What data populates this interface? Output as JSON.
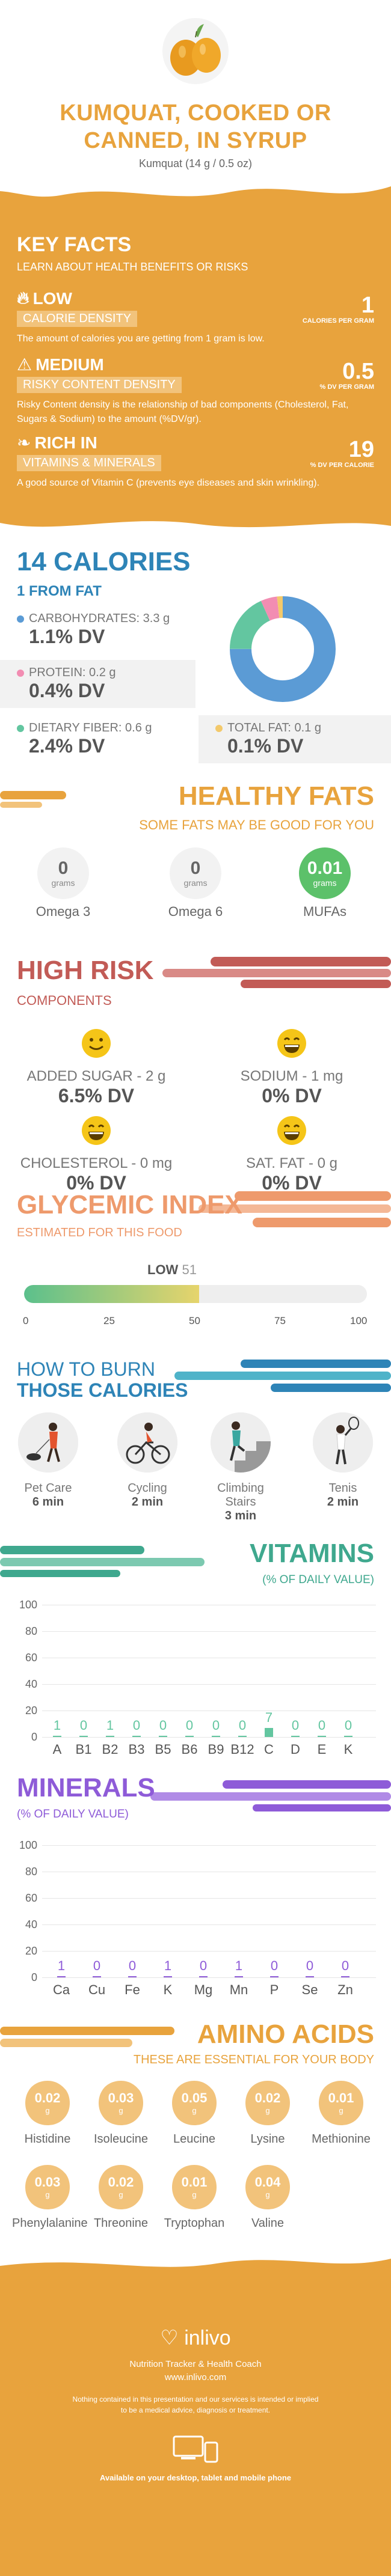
{
  "header": {
    "title_line1": "KUMQUAT, COOKED OR",
    "title_line2": "CANNED, IN SYRUP",
    "subtitle": "Kumquat (14 g / 0.5 oz)"
  },
  "key_facts": {
    "title": "KEY FACTS",
    "subtitle": "LEARN ABOUT HEALTH BENEFITS OR RISKS",
    "facts": [
      {
        "level": "LOW",
        "tag": "CALORIE DENSITY",
        "desc": "The amount of calories you are getting from 1 gram is low.",
        "value": "1",
        "unit": "CALORIES PER GRAM",
        "icon": "flame-icon"
      },
      {
        "level": "MEDIUM",
        "tag": "RISKY CONTENT DENSITY",
        "desc": "Risky Content density is the relationship of bad components (Cholesterol, Fat, Sugars & Sodium) to the amount (%DV/gr).",
        "value": "0.5",
        "unit": "% DV PER GRAM",
        "icon": "warning-icon"
      },
      {
        "level": "RICH  IN",
        "tag": "VITAMINS & MINERALS",
        "desc": "A good source of Vitamin C (prevents eye diseases and skin wrinkling).",
        "value": "19",
        "unit": "% DV PER CALORIE",
        "icon": "leaf-icon"
      }
    ]
  },
  "calories": {
    "title": "14 CALORIES",
    "from_fat": "1 FROM FAT",
    "macros": [
      {
        "name": "CARBOHYDRATES: 3.3 g",
        "dv": "1.1% DV",
        "color": "#5B9BD5"
      },
      {
        "name": "PROTEIN: 0.2 g",
        "dv": "0.4% DV",
        "color": "#F28DB2"
      },
      {
        "name": "DIETARY FIBER: 0.6 g",
        "dv": "2.4% DV",
        "color": "#63C6A0"
      },
      {
        "name": "TOTAL FAT: 0.1 g",
        "dv": "0.1% DV",
        "color": "#F3C96B"
      }
    ]
  },
  "healthy_fats": {
    "title": "HEALTHY FATS",
    "subtitle": "SOME FATS MAY BE GOOD FOR YOU",
    "items": [
      {
        "value": "0",
        "unit": "grams",
        "name": "Omega 3"
      },
      {
        "value": "0",
        "unit": "grams",
        "name": "Omega 6"
      },
      {
        "value": "0.01",
        "unit": "grams",
        "name": "MUFAs"
      }
    ]
  },
  "high_risk": {
    "title": "HIGH RISK",
    "subtitle": "COMPONENTS",
    "items": [
      {
        "name": "ADDED SUGAR - 2 g",
        "dv": "6.5% DV"
      },
      {
        "name": "SODIUM - 1 mg",
        "dv": "0% DV"
      },
      {
        "name": "CHOLESTEROL - 0 mg",
        "dv": "0% DV"
      },
      {
        "name": "SAT. FAT - 0 g",
        "dv": "0% DV"
      }
    ]
  },
  "glycemic": {
    "title": "GLYCEMIC INDEX",
    "subtitle": "ESTIMATED FOR THIS FOOD",
    "level": "LOW",
    "value": "51",
    "value_num": 51,
    "ticks": [
      "0",
      "25",
      "50",
      "75",
      "100"
    ]
  },
  "burn": {
    "title1": "HOW TO BURN",
    "title2": "THOSE CALORIES",
    "activities": [
      {
        "name": "Pet Care",
        "time": "6 min"
      },
      {
        "name": "Cycling",
        "time": "2 min"
      },
      {
        "name": "Climbing Stairs",
        "time": "3 min"
      },
      {
        "name": "Tenis",
        "time": "2 min"
      }
    ]
  },
  "vitamins": {
    "title": "VITAMINS",
    "subtitle": "(% OF DAILY VALUE)",
    "axis": [
      "100",
      "80",
      "60",
      "40",
      "20",
      "0"
    ],
    "chart_data": {
      "type": "bar",
      "categories": [
        "A",
        "B1",
        "B2",
        "B3",
        "B5",
        "B6",
        "B9",
        "B12",
        "C",
        "D",
        "E",
        "K"
      ],
      "values": [
        1,
        0,
        1,
        0,
        0,
        0,
        0,
        0,
        7,
        0,
        0,
        0
      ],
      "labels": [
        "1",
        "0",
        "1",
        "0",
        "0",
        "0",
        "0",
        "0",
        "7",
        "0",
        "0",
        "0"
      ],
      "ylim": [
        0,
        100
      ]
    }
  },
  "minerals": {
    "title": "MINERALS",
    "subtitle": "(% OF DAILY VALUE)",
    "axis": [
      "100",
      "80",
      "60",
      "40",
      "20",
      "0"
    ],
    "chart_data": {
      "type": "bar",
      "categories": [
        "Ca",
        "Cu",
        "Fe",
        "K",
        "Mg",
        "Mn",
        "P",
        "Se",
        "Zn"
      ],
      "values": [
        1,
        0,
        0,
        1,
        0,
        1,
        0,
        0,
        0
      ],
      "labels": [
        "1",
        "0",
        "0",
        "1",
        "0",
        "1",
        "0",
        "0",
        "0"
      ],
      "ylim": [
        0,
        100
      ]
    }
  },
  "amino": {
    "title": "AMINO ACIDS",
    "subtitle": "THESE ARE ESSENTIAL FOR YOUR BODY",
    "unit": "g",
    "items": [
      {
        "value": "0.02",
        "name": "Histidine"
      },
      {
        "value": "0.03",
        "name": "Isoleucine"
      },
      {
        "value": "0.05",
        "name": "Leucine"
      },
      {
        "value": "0.02",
        "name": "Lysine"
      },
      {
        "value": "0.01",
        "name": "Methionine"
      },
      {
        "value": "0.03",
        "name": "Phenylalanine"
      },
      {
        "value": "0.02",
        "name": "Threonine"
      },
      {
        "value": "0.01",
        "name": "Tryptophan"
      },
      {
        "value": "0.04",
        "name": "Valine"
      }
    ]
  },
  "footer": {
    "brand": "inlivo",
    "tagline": "Nutrition Tracker & Health Coach",
    "url": "www.inlivo.com",
    "disclaimer1": "Nothing contained in this presentation and our services is intended or implied",
    "disclaimer2": "to be a medical advice, diagnosis or treatment.",
    "availability": "Available on your desktop, tablet and mobile phone"
  },
  "colors": {
    "orange": "#E8A33D",
    "blue": "#2E84B7",
    "red": "#C25B56",
    "green": "#63C6A0",
    "purple": "#8E5BD8"
  }
}
